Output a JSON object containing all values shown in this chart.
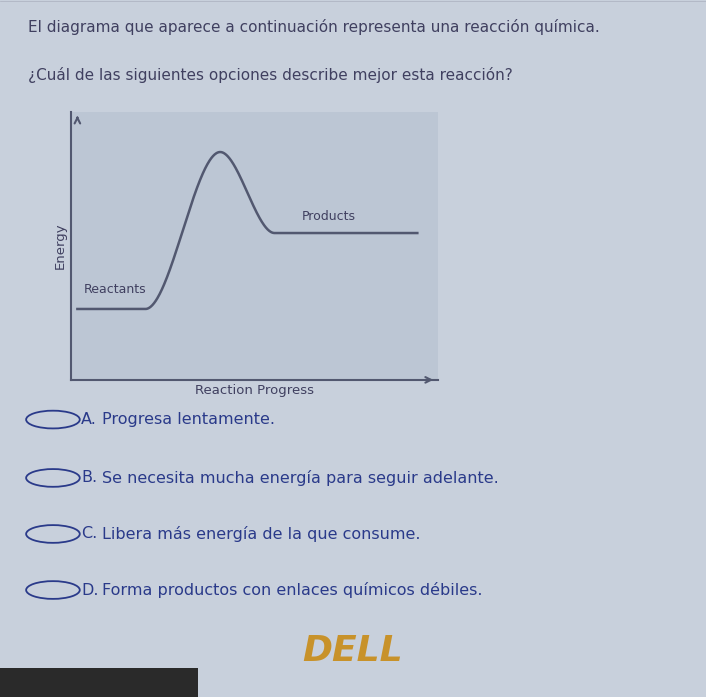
{
  "title1": "El diagrama que aparece a continuación representa una reacción química.",
  "title2": "¿Cuál de las siguientes opciones describe mejor esta reacción?",
  "xlabel": "Reaction Progress",
  "ylabel": "Energy",
  "reactants_label": "Reactants",
  "products_label": "Products",
  "options": [
    [
      "A.",
      "Progresa lentamente."
    ],
    [
      "B.",
      "Se necesita mucha energía para seguir adelante."
    ],
    [
      "C.",
      "Libera más energía de la que consume."
    ],
    [
      "D.",
      "Forma productos con enlaces químicos débiles."
    ]
  ],
  "bg_color": "#c8d0dc",
  "plot_bg_color": "#bcc6d4",
  "curve_color": "#525870",
  "text_color": "#404060",
  "option_color": "#2a3a8a",
  "circle_color": "#2a3a8a",
  "dell_bg": "#1c1c1c",
  "dell_color": "#c8922a",
  "title_fontsize": 11,
  "label_fontsize": 9.5,
  "option_fontsize": 11.5,
  "reactant_e": 0.28,
  "product_e": 0.58,
  "peak_e": 0.9
}
